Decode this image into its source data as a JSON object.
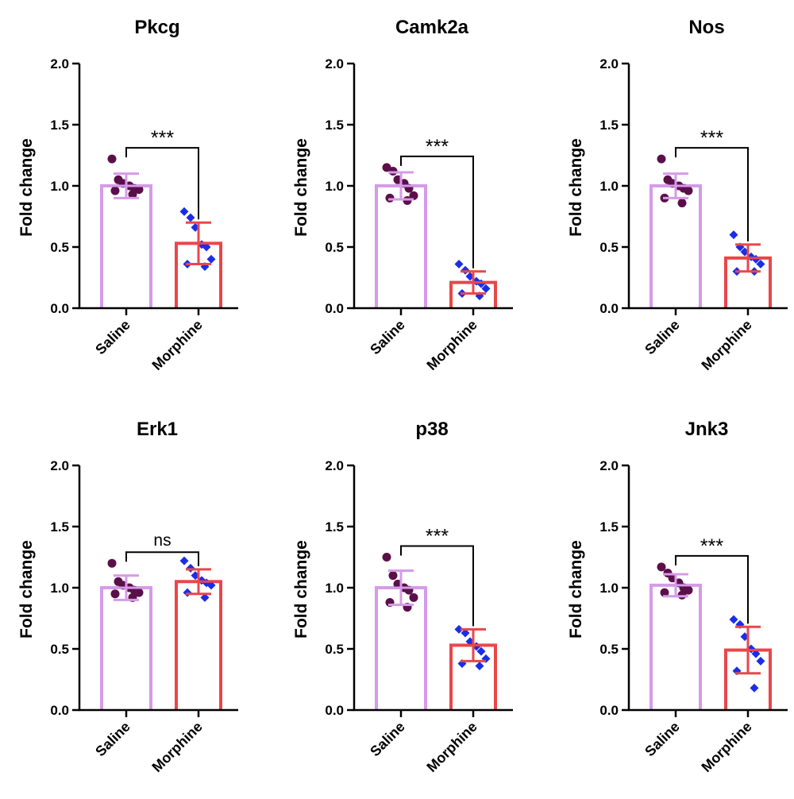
{
  "figure": {
    "colors": {
      "saline": "#d59be8",
      "morphine": "#e8474a",
      "saline_points": "#5b0f4a",
      "morphine_points": "#1a2ee6",
      "axis": "#000000"
    }
  },
  "chart_data": [
    {
      "type": "bar",
      "title": "Pkcg",
      "ylabel": "Fold change",
      "ylim": [
        0,
        2.0
      ],
      "yticks": [
        "0.0",
        "0.5",
        "1.0",
        "1.5",
        "2.0"
      ],
      "categories": [
        "Saline",
        "Morphine"
      ],
      "values": [
        1.0,
        0.53
      ],
      "error": [
        0.1,
        0.17
      ],
      "points": [
        [
          1.22,
          1.05,
          1.02,
          1.0,
          0.98,
          0.97,
          0.96,
          0.93
        ],
        [
          0.79,
          0.74,
          0.66,
          0.52,
          0.5,
          0.4,
          0.36,
          0.34
        ]
      ],
      "significance": "***"
    },
    {
      "type": "bar",
      "title": "Camk2a",
      "ylabel": "Fold change",
      "ylim": [
        0,
        2.0
      ],
      "yticks": [
        "0.0",
        "0.5",
        "1.0",
        "1.5",
        "2.0"
      ],
      "categories": [
        "Saline",
        "Morphine"
      ],
      "values": [
        1.0,
        0.21
      ],
      "error": [
        0.11,
        0.09
      ],
      "points": [
        [
          1.15,
          1.12,
          1.05,
          1.02,
          0.98,
          0.92,
          0.9,
          0.88
        ],
        [
          0.36,
          0.31,
          0.26,
          0.22,
          0.2,
          0.16,
          0.12,
          0.1
        ]
      ],
      "significance": "***"
    },
    {
      "type": "bar",
      "title": "Nos",
      "ylabel": "Fold change",
      "ylim": [
        0,
        2.0
      ],
      "yticks": [
        "0.0",
        "0.5",
        "1.0",
        "1.5",
        "2.0"
      ],
      "categories": [
        "Saline",
        "Morphine"
      ],
      "values": [
        1.0,
        0.41
      ],
      "error": [
        0.1,
        0.11
      ],
      "points": [
        [
          1.22,
          1.05,
          1.02,
          1.0,
          0.98,
          0.96,
          0.9,
          0.86
        ],
        [
          0.6,
          0.5,
          0.46,
          0.42,
          0.4,
          0.36,
          0.3,
          0.3
        ]
      ],
      "significance": "***"
    },
    {
      "type": "bar",
      "title": "Erk1",
      "ylabel": "Fold change",
      "ylim": [
        0,
        2.0
      ],
      "yticks": [
        "0.0",
        "0.5",
        "1.0",
        "1.5",
        "2.0"
      ],
      "categories": [
        "Saline",
        "Morphine"
      ],
      "values": [
        1.0,
        1.05
      ],
      "error": [
        0.1,
        0.1
      ],
      "points": [
        [
          1.2,
          1.05,
          1.02,
          1.0,
          0.98,
          0.96,
          0.95,
          0.92
        ],
        [
          1.22,
          1.16,
          1.1,
          1.06,
          1.04,
          1.02,
          0.96,
          0.92
        ]
      ],
      "significance": "ns"
    },
    {
      "type": "bar",
      "title": "p38",
      "ylabel": "Fold change",
      "ylim": [
        0,
        2.0
      ],
      "yticks": [
        "0.0",
        "0.5",
        "1.0",
        "1.5",
        "2.0"
      ],
      "categories": [
        "Saline",
        "Morphine"
      ],
      "values": [
        1.0,
        0.53
      ],
      "error": [
        0.14,
        0.13
      ],
      "points": [
        [
          1.25,
          1.1,
          1.03,
          1.0,
          0.98,
          0.92,
          0.88,
          0.84
        ],
        [
          0.66,
          0.63,
          0.56,
          0.52,
          0.48,
          0.42,
          0.38,
          0.36
        ]
      ],
      "significance": "***"
    },
    {
      "type": "bar",
      "title": "Jnk3",
      "ylabel": "Fold change",
      "ylim": [
        0,
        2.0
      ],
      "yticks": [
        "0.0",
        "0.5",
        "1.0",
        "1.5",
        "2.0"
      ],
      "categories": [
        "Saline",
        "Morphine"
      ],
      "values": [
        1.02,
        0.49
      ],
      "error": [
        0.09,
        0.19
      ],
      "points": [
        [
          1.17,
          1.12,
          1.08,
          1.04,
          1.0,
          0.98,
          0.96,
          0.94
        ],
        [
          0.74,
          0.7,
          0.6,
          0.5,
          0.46,
          0.4,
          0.32,
          0.18
        ]
      ],
      "significance": "***"
    }
  ]
}
